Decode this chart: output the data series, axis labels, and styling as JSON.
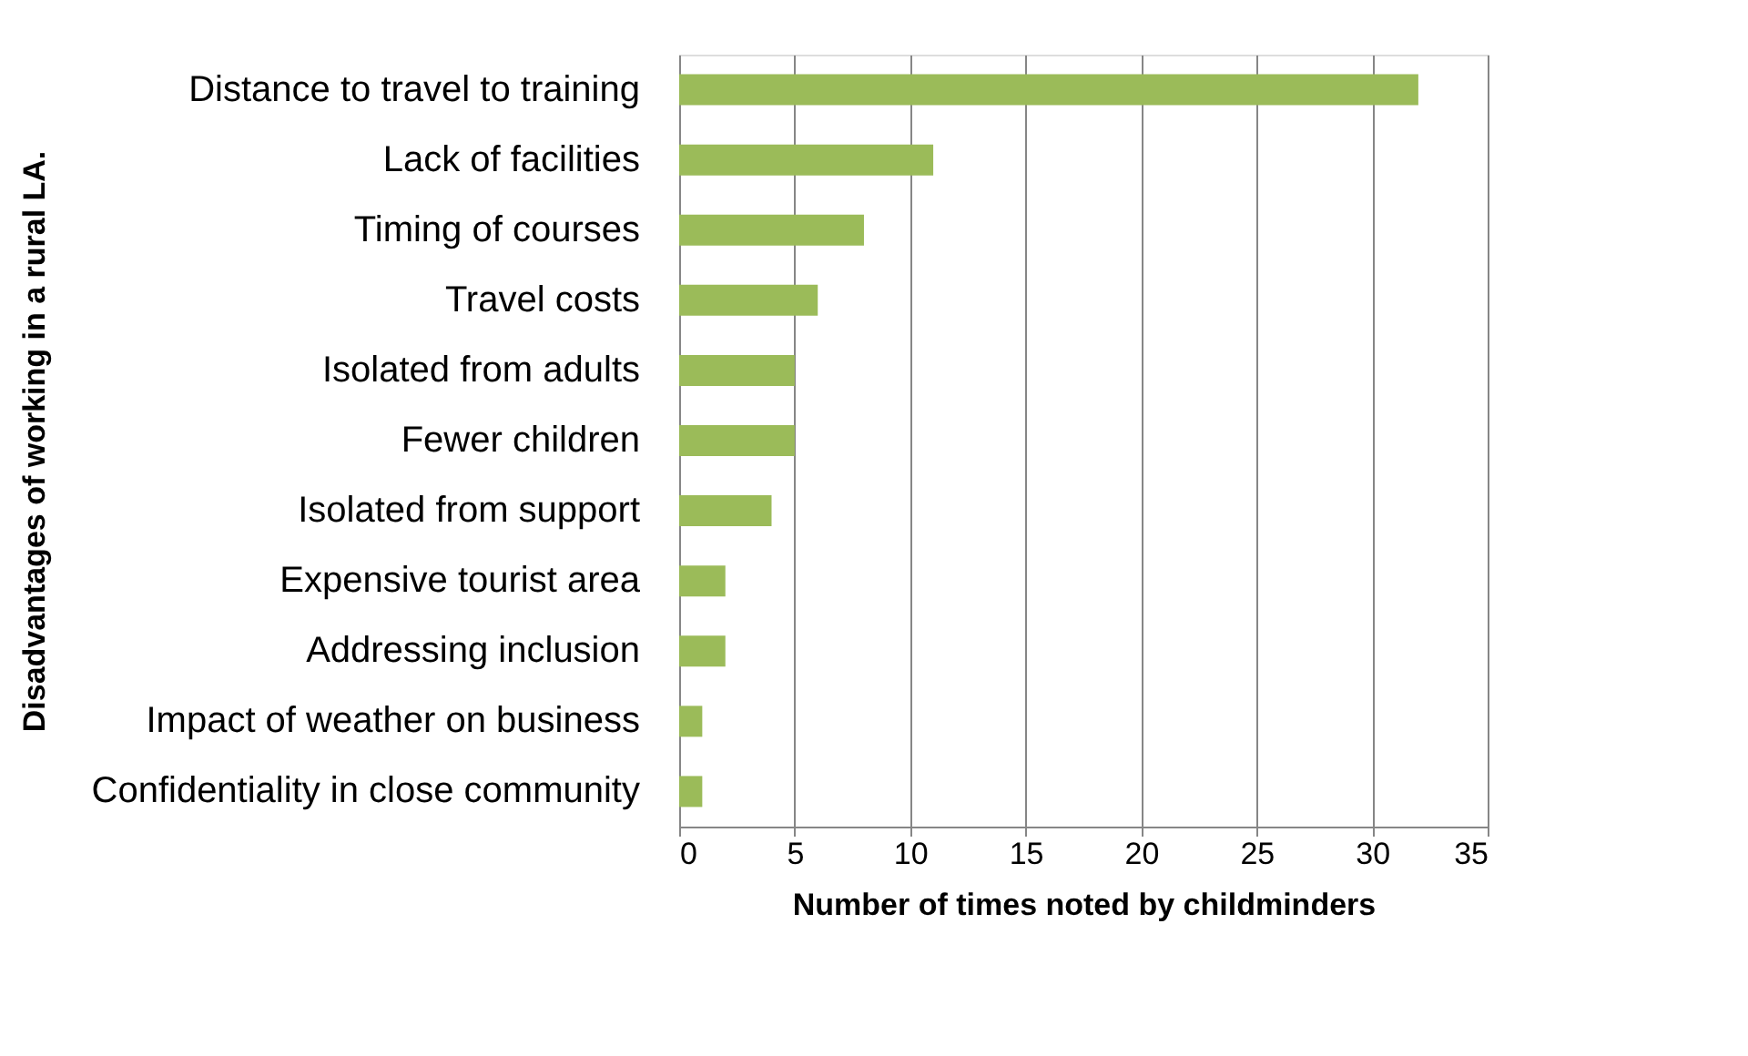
{
  "chart_data": {
    "type": "bar",
    "orientation": "horizontal",
    "xlabel": "Number of times noted by childminders",
    "ylabel": "Disadvantages of working in a rural LA.",
    "categories": [
      "Distance to travel to training",
      "Lack of facilities",
      "Timing of courses",
      "Travel costs",
      "Isolated from adults",
      "Fewer children",
      "Isolated from support",
      "Expensive tourist area",
      "Addressing inclusion",
      "Impact of weather on business",
      "Confidentiality in close community"
    ],
    "values": [
      32,
      11,
      8,
      6,
      5,
      5,
      4,
      2,
      2,
      1,
      1
    ],
    "color": "#9bbb59",
    "xlim": [
      0,
      35
    ],
    "xticks": [
      0,
      5,
      10,
      15,
      20,
      25,
      30,
      35
    ],
    "grid": "x"
  }
}
